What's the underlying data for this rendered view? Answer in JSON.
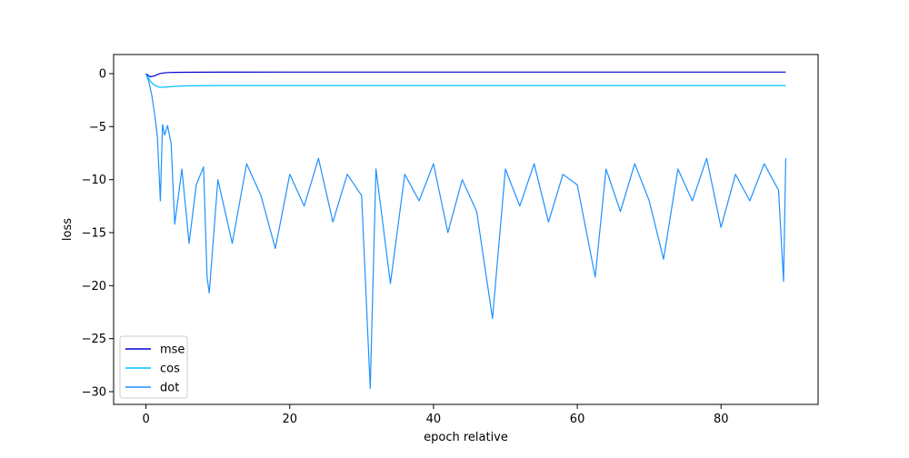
{
  "chart_data": {
    "type": "line",
    "title": "",
    "xlabel": "epoch relative",
    "ylabel": "loss",
    "xlim": [
      -4.5,
      93.5
    ],
    "ylim": [
      -31.2,
      1.8
    ],
    "x_ticks": [
      0,
      20,
      40,
      60,
      80
    ],
    "y_ticks": [
      0,
      -5,
      -10,
      -15,
      -20,
      -25,
      -30
    ],
    "grid": false,
    "legend": {
      "position": "lower-left",
      "entries": [
        "mse",
        "cos",
        "dot"
      ]
    },
    "series": [
      {
        "name": "mse",
        "color": "#0000cd",
        "x": [
          0,
          0.3,
          0.6,
          1,
          1.5,
          2,
          3,
          4,
          6,
          10,
          20,
          30,
          40,
          50,
          60,
          70,
          80,
          89
        ],
        "values": [
          0,
          -0.15,
          -0.3,
          -0.25,
          -0.12,
          0.02,
          0.1,
          0.12,
          0.13,
          0.14,
          0.15,
          0.15,
          0.15,
          0.15,
          0.15,
          0.15,
          0.15,
          0.15
        ]
      },
      {
        "name": "cos",
        "color": "#00bfff",
        "x": [
          0,
          0.3,
          0.6,
          1,
          1.5,
          2,
          3,
          4,
          6,
          10,
          20,
          30,
          40,
          50,
          60,
          70,
          80,
          89
        ],
        "values": [
          0,
          -0.35,
          -0.7,
          -1.0,
          -1.2,
          -1.3,
          -1.25,
          -1.2,
          -1.15,
          -1.12,
          -1.12,
          -1.12,
          -1.12,
          -1.12,
          -1.12,
          -1.12,
          -1.12,
          -1.12
        ]
      },
      {
        "name": "dot",
        "color": "#1e90ff",
        "x": [
          0,
          0.4,
          0.8,
          1.2,
          1.6,
          2.0,
          2.3,
          2.6,
          3.0,
          3.5,
          4.0,
          5.0,
          6.0,
          7.0,
          8.0,
          8.5,
          8.8,
          10,
          12,
          14,
          16,
          18,
          20,
          22,
          24,
          26,
          28,
          30,
          31.2,
          32,
          34,
          36,
          38,
          40,
          42,
          44,
          46,
          48.2,
          50,
          52,
          54,
          56,
          58,
          60,
          62.5,
          64,
          66,
          68,
          70,
          72,
          74,
          76,
          78,
          80,
          82,
          84,
          86,
          88,
          88.7,
          89
        ],
        "values": [
          0,
          -0.8,
          -2.0,
          -3.8,
          -6.0,
          -12.0,
          -4.8,
          -5.8,
          -4.9,
          -6.6,
          -14.2,
          -9.0,
          -16.0,
          -10.5,
          -8.8,
          -19.2,
          -20.7,
          -10.0,
          -16.0,
          -8.5,
          -11.5,
          -16.5,
          -9.5,
          -12.5,
          -8.0,
          -14.0,
          -9.5,
          -11.5,
          -29.7,
          -9.0,
          -19.8,
          -9.5,
          -12.0,
          -8.5,
          -15.0,
          -10.0,
          -13.0,
          -23.1,
          -9.0,
          -12.5,
          -8.5,
          -14.0,
          -9.5,
          -10.5,
          -19.2,
          -9.0,
          -13.0,
          -8.5,
          -12.0,
          -17.5,
          -9.0,
          -12.0,
          -8.0,
          -14.5,
          -9.5,
          -12.0,
          -8.5,
          -11.0,
          -19.6,
          -8.0
        ]
      }
    ]
  }
}
